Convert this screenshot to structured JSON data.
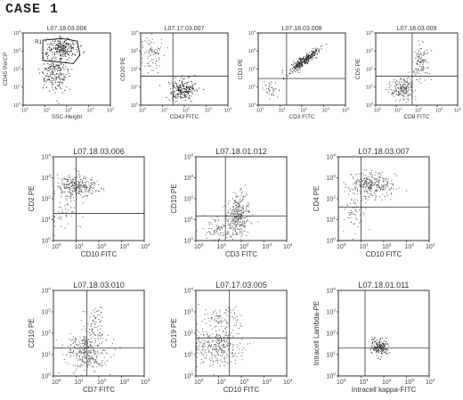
{
  "title": "CASE 1",
  "chart_data": [
    {
      "type": "scatter",
      "title": "L07.18.03.006",
      "xlabel": "SSC-Height",
      "ylabel": "CD45 PerCP",
      "xscale": "log",
      "yscale": "log",
      "xlim": [
        1,
        10000
      ],
      "ylim": [
        1,
        10000
      ],
      "annotations": [
        "R1"
      ],
      "gate": {
        "x": [
          8,
          60,
          300,
          400,
          200,
          8
        ],
        "y": [
          4000,
          5000,
          3500,
          600,
          200,
          300
        ]
      },
      "clusters": [
        {
          "cx": 60,
          "cy": 1500,
          "sx": 0.35,
          "sy": 0.3,
          "n": 230,
          "dark": true
        },
        {
          "cx": 25,
          "cy": 60,
          "sx": 0.3,
          "sy": 0.5,
          "n": 200,
          "dark": true
        }
      ]
    },
    {
      "type": "scatter",
      "title": "L07.17.03.007",
      "xlabel": "CD43 FITC",
      "ylabel": "CD20 PE",
      "xscale": "log",
      "yscale": "log",
      "xlim": [
        1,
        10000
      ],
      "ylim": [
        1,
        10000
      ],
      "quadrant": {
        "x": 30,
        "y": 40
      },
      "clusters": [
        {
          "cx": 80,
          "cy": 8,
          "sx": 0.3,
          "sy": 0.3,
          "n": 220,
          "dark": true
        },
        {
          "cx": 3,
          "cy": 600,
          "sx": 0.25,
          "sy": 0.5,
          "n": 80,
          "dark": false
        }
      ]
    },
    {
      "type": "scatter",
      "title": "L07.18.03.008",
      "xlabel": "CD3 FITC",
      "ylabel": "CD2 PE",
      "xscale": "log",
      "yscale": "log",
      "xlim": [
        1,
        10000
      ],
      "ylim": [
        1,
        10000
      ],
      "quadrant": {
        "x": 20,
        "y": 30
      },
      "clusters": [
        {
          "cx": 120,
          "cy": 300,
          "sx": 0.35,
          "sy": 0.35,
          "n": 260,
          "dark": true,
          "corr": 0.9
        },
        {
          "cx": 4,
          "cy": 8,
          "sx": 0.2,
          "sy": 0.2,
          "n": 40,
          "dark": false
        }
      ]
    },
    {
      "type": "scatter",
      "title": "L07.18.03.009",
      "xlabel": "CD8 FITC",
      "ylabel": "CD5 PE",
      "xscale": "log",
      "yscale": "log",
      "xlim": [
        1,
        10000
      ],
      "ylim": [
        1,
        10000
      ],
      "quadrant": {
        "x": 60,
        "y": 40
      },
      "clusters": [
        {
          "cx": 20,
          "cy": 8,
          "sx": 0.3,
          "sy": 0.3,
          "n": 200,
          "dark": false
        },
        {
          "cx": 150,
          "cy": 300,
          "sx": 0.2,
          "sy": 0.5,
          "n": 120,
          "dark": false
        }
      ]
    },
    {
      "type": "scatter",
      "title": "L07.18.03.006",
      "xlabel": "CD10 FITC",
      "ylabel": "CD2 PE",
      "xscale": "log",
      "yscale": "log",
      "xlim": [
        1,
        10000
      ],
      "ylim": [
        1,
        10000
      ],
      "quadrant": {
        "x": 10,
        "y": 20
      },
      "clusters": [
        {
          "cx": 10,
          "cy": 400,
          "sx": 0.45,
          "sy": 0.25,
          "n": 300,
          "dark": false
        },
        {
          "cx": 3,
          "cy": 15,
          "sx": 0.3,
          "sy": 0.4,
          "n": 40,
          "dark": false
        }
      ]
    },
    {
      "type": "scatter",
      "title": "L07.18.01.012",
      "xlabel": "CD3 FITC",
      "ylabel": "CD10 PE",
      "xscale": "log",
      "yscale": "log",
      "xlim": [
        1,
        10000
      ],
      "ylim": [
        1,
        10000
      ],
      "quadrant": {
        "x": 20,
        "y": 15
      },
      "clusters": [
        {
          "cx": 70,
          "cy": 15,
          "sx": 0.25,
          "sy": 0.45,
          "n": 320,
          "dark": false
        },
        {
          "cx": 8,
          "cy": 4,
          "sx": 0.3,
          "sy": 0.3,
          "n": 80,
          "dark": false
        }
      ]
    },
    {
      "type": "scatter",
      "title": "L07.18.03.007",
      "xlabel": "CD10 FITC",
      "ylabel": "CD4 PE",
      "xscale": "log",
      "yscale": "log",
      "xlim": [
        1,
        10000
      ],
      "ylim": [
        1,
        10000
      ],
      "quadrant": {
        "x": 10,
        "y": 40
      },
      "clusters": [
        {
          "cx": 30,
          "cy": 500,
          "sx": 0.5,
          "sy": 0.3,
          "n": 300,
          "dark": false
        },
        {
          "cx": 5,
          "cy": 30,
          "sx": 0.3,
          "sy": 0.5,
          "n": 60,
          "dark": false
        }
      ]
    },
    {
      "type": "scatter",
      "title": "L07.18.03.010",
      "xlabel": "CD7 FITC",
      "ylabel": "CD10 PE",
      "xscale": "log",
      "yscale": "log",
      "xlim": [
        1,
        10000
      ],
      "ylim": [
        1,
        10000
      ],
      "quadrant": {
        "x": 30,
        "y": 20
      },
      "clusters": [
        {
          "cx": 30,
          "cy": 15,
          "sx": 0.45,
          "sy": 0.45,
          "n": 330,
          "dark": false
        },
        {
          "cx": 60,
          "cy": 300,
          "sx": 0.2,
          "sy": 0.4,
          "n": 60,
          "dark": false
        }
      ]
    },
    {
      "type": "scatter",
      "title": "L07.17.03.005",
      "xlabel": "CD10 FITC",
      "ylabel": "CD19 PE",
      "xscale": "log",
      "yscale": "log",
      "xlim": [
        1,
        10000
      ],
      "ylim": [
        1,
        10000
      ],
      "quadrant": {
        "x": 30,
        "y": 60
      },
      "clusters": [
        {
          "cx": 8,
          "cy": 25,
          "sx": 0.5,
          "sy": 0.4,
          "n": 300,
          "dark": false
        },
        {
          "cx": 15,
          "cy": 500,
          "sx": 0.45,
          "sy": 0.3,
          "n": 90,
          "dark": false
        }
      ]
    },
    {
      "type": "scatter",
      "title": "L07.18.01.011",
      "xlabel": "Intracell kappa-FITC",
      "ylabel": "Intracell Lambda-PE",
      "xscale": "log",
      "yscale": "log",
      "xlim": [
        1,
        10000
      ],
      "ylim": [
        1,
        10000
      ],
      "quadrant": {
        "x": 15,
        "y": 20
      },
      "clusters": [
        {
          "cx": 60,
          "cy": 25,
          "sx": 0.2,
          "sy": 0.2,
          "n": 160,
          "dark": true
        }
      ]
    }
  ]
}
